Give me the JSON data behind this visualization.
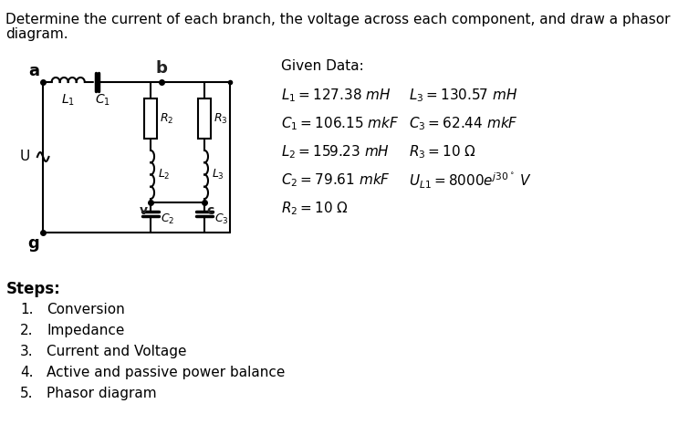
{
  "title_line1": "Determine the current of each branch, the voltage across each component, and draw a phasor",
  "title_line2": "diagram.",
  "given_data_title": "Given Data:",
  "bg_color": "#ffffff",
  "text_color": "#000000",
  "steps": [
    "Conversion",
    "Impedance",
    "Current and Voltage",
    "Active and passive power balance",
    "Phasor diagram"
  ]
}
